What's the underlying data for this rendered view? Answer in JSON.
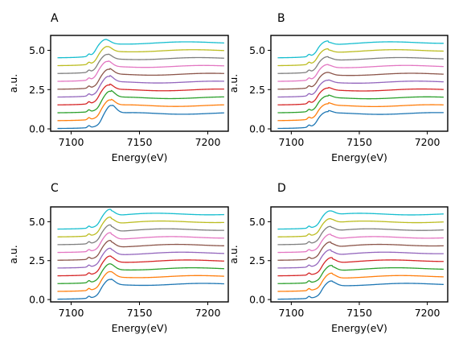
{
  "figure": {
    "panel_letters": [
      "A",
      "B",
      "C",
      "D"
    ]
  },
  "chart_data": [
    {
      "panel": "A",
      "type": "line",
      "xlabel": "Energy(eV)",
      "ylabel": "a.u.",
      "xlim": [
        7085,
        7215
      ],
      "ylim": [
        -0.15,
        5.95
      ],
      "xticks": [
        7100,
        7150,
        7200
      ],
      "yticks": [
        0.0,
        2.5,
        5.0
      ],
      "ytick_labels": [
        "0.0",
        "2.5",
        "5.0"
      ],
      "grid": false,
      "series": [
        {
          "offset": 0.0,
          "color": "#1f77b4",
          "edge": 7122,
          "peak": 0.6
        },
        {
          "offset": 0.5,
          "color": "#ff7f0e",
          "edge": 7121,
          "peak": 0.45
        },
        {
          "offset": 1.0,
          "color": "#2ca02c",
          "edge": 7121,
          "peak": 0.5
        },
        {
          "offset": 1.5,
          "color": "#d62728",
          "edge": 7120,
          "peak": 0.4
        },
        {
          "offset": 2.0,
          "color": "#9467bd",
          "edge": 7120,
          "peak": 0.45
        },
        {
          "offset": 2.5,
          "color": "#8c564b",
          "edge": 7120,
          "peak": 0.4
        },
        {
          "offset": 3.0,
          "color": "#e377c2",
          "edge": 7119,
          "peak": 0.4
        },
        {
          "offset": 3.5,
          "color": "#7f7f7f",
          "edge": 7119,
          "peak": 0.35
        },
        {
          "offset": 4.0,
          "color": "#bcbd22",
          "edge": 7119,
          "peak": 0.35
        },
        {
          "offset": 4.5,
          "color": "#17becf",
          "edge": 7118,
          "peak": 0.3
        }
      ]
    },
    {
      "panel": "B",
      "type": "line",
      "xlabel": "Energy(eV)",
      "ylabel": "a.u.",
      "xlim": [
        7085,
        7215
      ],
      "ylim": [
        -0.15,
        5.95
      ],
      "xticks": [
        7100,
        7150,
        7200
      ],
      "yticks": [
        0.0,
        2.5,
        5.0
      ],
      "ytick_labels": [
        "0.0",
        "2.5",
        "5.0"
      ],
      "grid": false,
      "series": [
        {
          "offset": 0.0,
          "color": "#1f77b4",
          "edge": 7119,
          "peak": 0.2
        },
        {
          "offset": 0.5,
          "color": "#ff7f0e",
          "edge": 7119,
          "peak": 0.2
        },
        {
          "offset": 1.0,
          "color": "#2ca02c",
          "edge": 7119,
          "peak": 0.2
        },
        {
          "offset": 1.5,
          "color": "#d62728",
          "edge": 7119,
          "peak": 0.2
        },
        {
          "offset": 2.0,
          "color": "#9467bd",
          "edge": 7119,
          "peak": 0.2
        },
        {
          "offset": 2.5,
          "color": "#8c564b",
          "edge": 7119,
          "peak": 0.2
        },
        {
          "offset": 3.0,
          "color": "#e377c2",
          "edge": 7119,
          "peak": 0.2
        },
        {
          "offset": 3.5,
          "color": "#7f7f7f",
          "edge": 7119,
          "peak": 0.2
        },
        {
          "offset": 4.0,
          "color": "#bcbd22",
          "edge": 7119,
          "peak": 0.2
        },
        {
          "offset": 4.5,
          "color": "#17becf",
          "edge": 7119,
          "peak": 0.2
        }
      ]
    },
    {
      "panel": "C",
      "type": "line",
      "xlabel": "Energy(eV)",
      "ylabel": "a.u.",
      "xlim": [
        7085,
        7215
      ],
      "ylim": [
        -0.15,
        5.95
      ],
      "xticks": [
        7100,
        7150,
        7200
      ],
      "yticks": [
        0.0,
        2.5,
        5.0
      ],
      "ytick_labels": [
        "0.0",
        "2.5",
        "5.0"
      ],
      "grid": false,
      "series": [
        {
          "offset": 0.0,
          "color": "#1f77b4",
          "edge": 7121,
          "peak": 0.4
        },
        {
          "offset": 0.5,
          "color": "#ff7f0e",
          "edge": 7121,
          "peak": 0.4
        },
        {
          "offset": 1.0,
          "color": "#2ca02c",
          "edge": 7121,
          "peak": 0.4
        },
        {
          "offset": 1.5,
          "color": "#d62728",
          "edge": 7121,
          "peak": 0.4
        },
        {
          "offset": 2.0,
          "color": "#9467bd",
          "edge": 7121,
          "peak": 0.4
        },
        {
          "offset": 2.5,
          "color": "#8c564b",
          "edge": 7121,
          "peak": 0.4
        },
        {
          "offset": 3.0,
          "color": "#e377c2",
          "edge": 7121,
          "peak": 0.4
        },
        {
          "offset": 3.5,
          "color": "#7f7f7f",
          "edge": 7121,
          "peak": 0.4
        },
        {
          "offset": 4.0,
          "color": "#bcbd22",
          "edge": 7121,
          "peak": 0.4
        },
        {
          "offset": 4.5,
          "color": "#17becf",
          "edge": 7121,
          "peak": 0.4
        }
      ]
    },
    {
      "panel": "D",
      "type": "line",
      "xlabel": "Energy(eV)",
      "ylabel": "a.u.",
      "xlim": [
        7085,
        7215
      ],
      "ylim": [
        -0.15,
        5.95
      ],
      "xticks": [
        7100,
        7150,
        7200
      ],
      "yticks": [
        0.0,
        2.5,
        5.0
      ],
      "ytick_labels": [
        "0.0",
        "2.5",
        "5.0"
      ],
      "grid": false,
      "series": [
        {
          "offset": 0.0,
          "color": "#1f77b4",
          "edge": 7122,
          "peak": 0.3
        },
        {
          "offset": 0.5,
          "color": "#ff7f0e",
          "edge": 7122,
          "peak": 0.3
        },
        {
          "offset": 1.0,
          "color": "#2ca02c",
          "edge": 7122,
          "peak": 0.3
        },
        {
          "offset": 1.5,
          "color": "#d62728",
          "edge": 7122,
          "peak": 0.3
        },
        {
          "offset": 2.0,
          "color": "#9467bd",
          "edge": 7121,
          "peak": 0.3
        },
        {
          "offset": 2.5,
          "color": "#8c564b",
          "edge": 7121,
          "peak": 0.3
        },
        {
          "offset": 3.0,
          "color": "#e377c2",
          "edge": 7121,
          "peak": 0.3
        },
        {
          "offset": 3.5,
          "color": "#7f7f7f",
          "edge": 7121,
          "peak": 0.3
        },
        {
          "offset": 4.0,
          "color": "#bcbd22",
          "edge": 7121,
          "peak": 0.3
        },
        {
          "offset": 4.5,
          "color": "#17becf",
          "edge": 7121,
          "peak": 0.3
        }
      ]
    }
  ]
}
